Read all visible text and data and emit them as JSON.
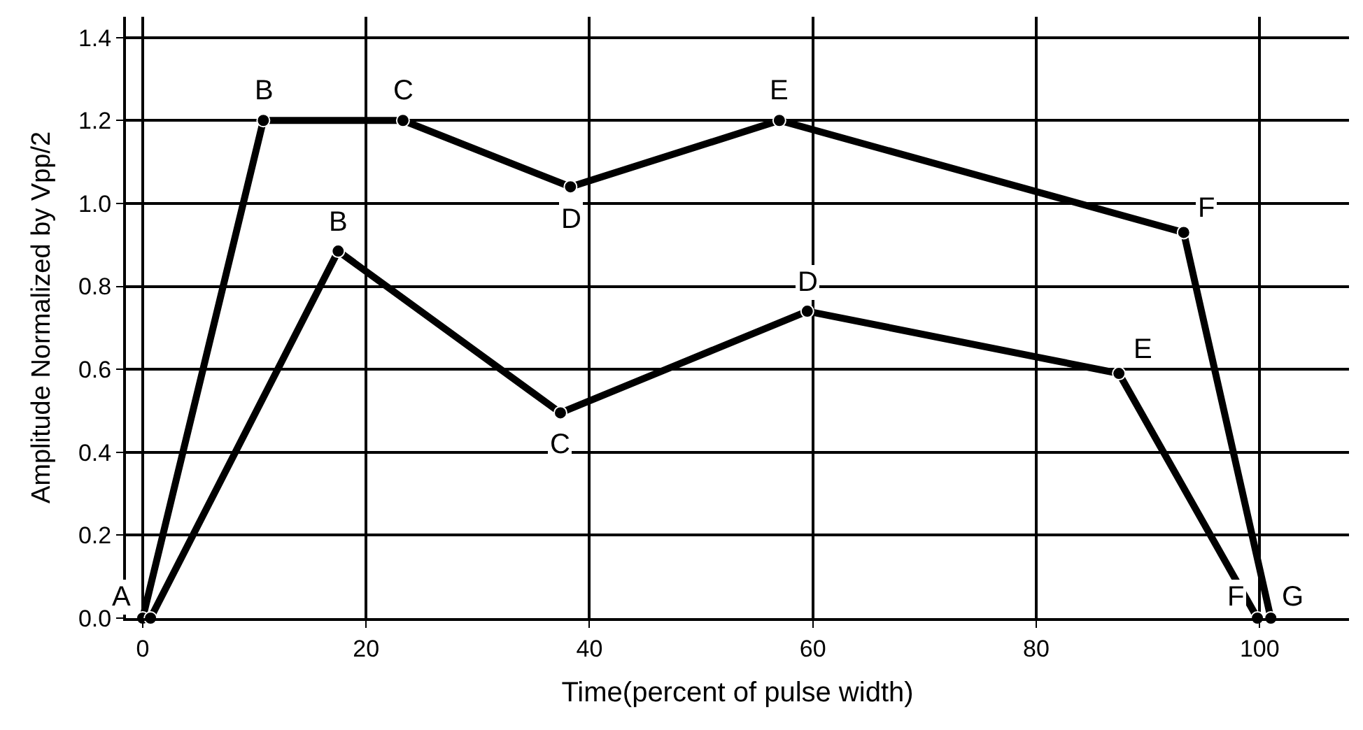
{
  "chart_data": {
    "type": "line",
    "xlabel": "Time(percent of pulse width)",
    "ylabel": "Amplitude Normalized by Vpp/2",
    "series": [
      {
        "color": "#000000",
        "x": [
          0,
          10.8,
          23.3,
          38.3,
          57,
          93.2,
          101
        ],
        "values": [
          0,
          1.2,
          1.2,
          1.04,
          1.2,
          0.93,
          0
        ]
      },
      {
        "color": "#000000",
        "x": [
          0.7,
          17.5,
          37.4,
          59.5,
          87.4,
          99.8
        ],
        "values": [
          0,
          0.885,
          0.495,
          0.74,
          0.59,
          0
        ]
      }
    ],
    "annotations": [
      {
        "text": "A",
        "x": 0,
        "y": 0
      },
      {
        "text": "B",
        "x": 10.8,
        "y": 1.2
      },
      {
        "text": "C",
        "x": 23.3,
        "y": 1.2
      },
      {
        "text": "D",
        "x": 38.3,
        "y": 1.04
      },
      {
        "text": "E",
        "x": 57,
        "y": 1.2
      },
      {
        "text": "F",
        "x": 93.2,
        "y": 0.93
      },
      {
        "text": "G",
        "x": 101,
        "y": 0
      },
      {
        "text": "B",
        "x": 17.5,
        "y": 0.885
      },
      {
        "text": "C",
        "x": 37.4,
        "y": 0.495
      },
      {
        "text": "D",
        "x": 59.5,
        "y": 0.74
      },
      {
        "text": "E",
        "x": 87.4,
        "y": 0.59
      },
      {
        "text": "F",
        "x": 99.8,
        "y": 0
      }
    ],
    "xlim": [
      -1.5,
      108
    ],
    "xticks": [
      0,
      20,
      40,
      60,
      80,
      100
    ],
    "ylim": [
      0,
      1.45
    ],
    "yticks": [
      {
        "value": 0,
        "label": "0.0"
      },
      0.2,
      0.4,
      0.6,
      0.8,
      {
        "value": 1,
        "label": "1.0"
      },
      1.2,
      1.4
    ],
    "grid": true,
    "marker": "circle",
    "line_style": "solid"
  }
}
